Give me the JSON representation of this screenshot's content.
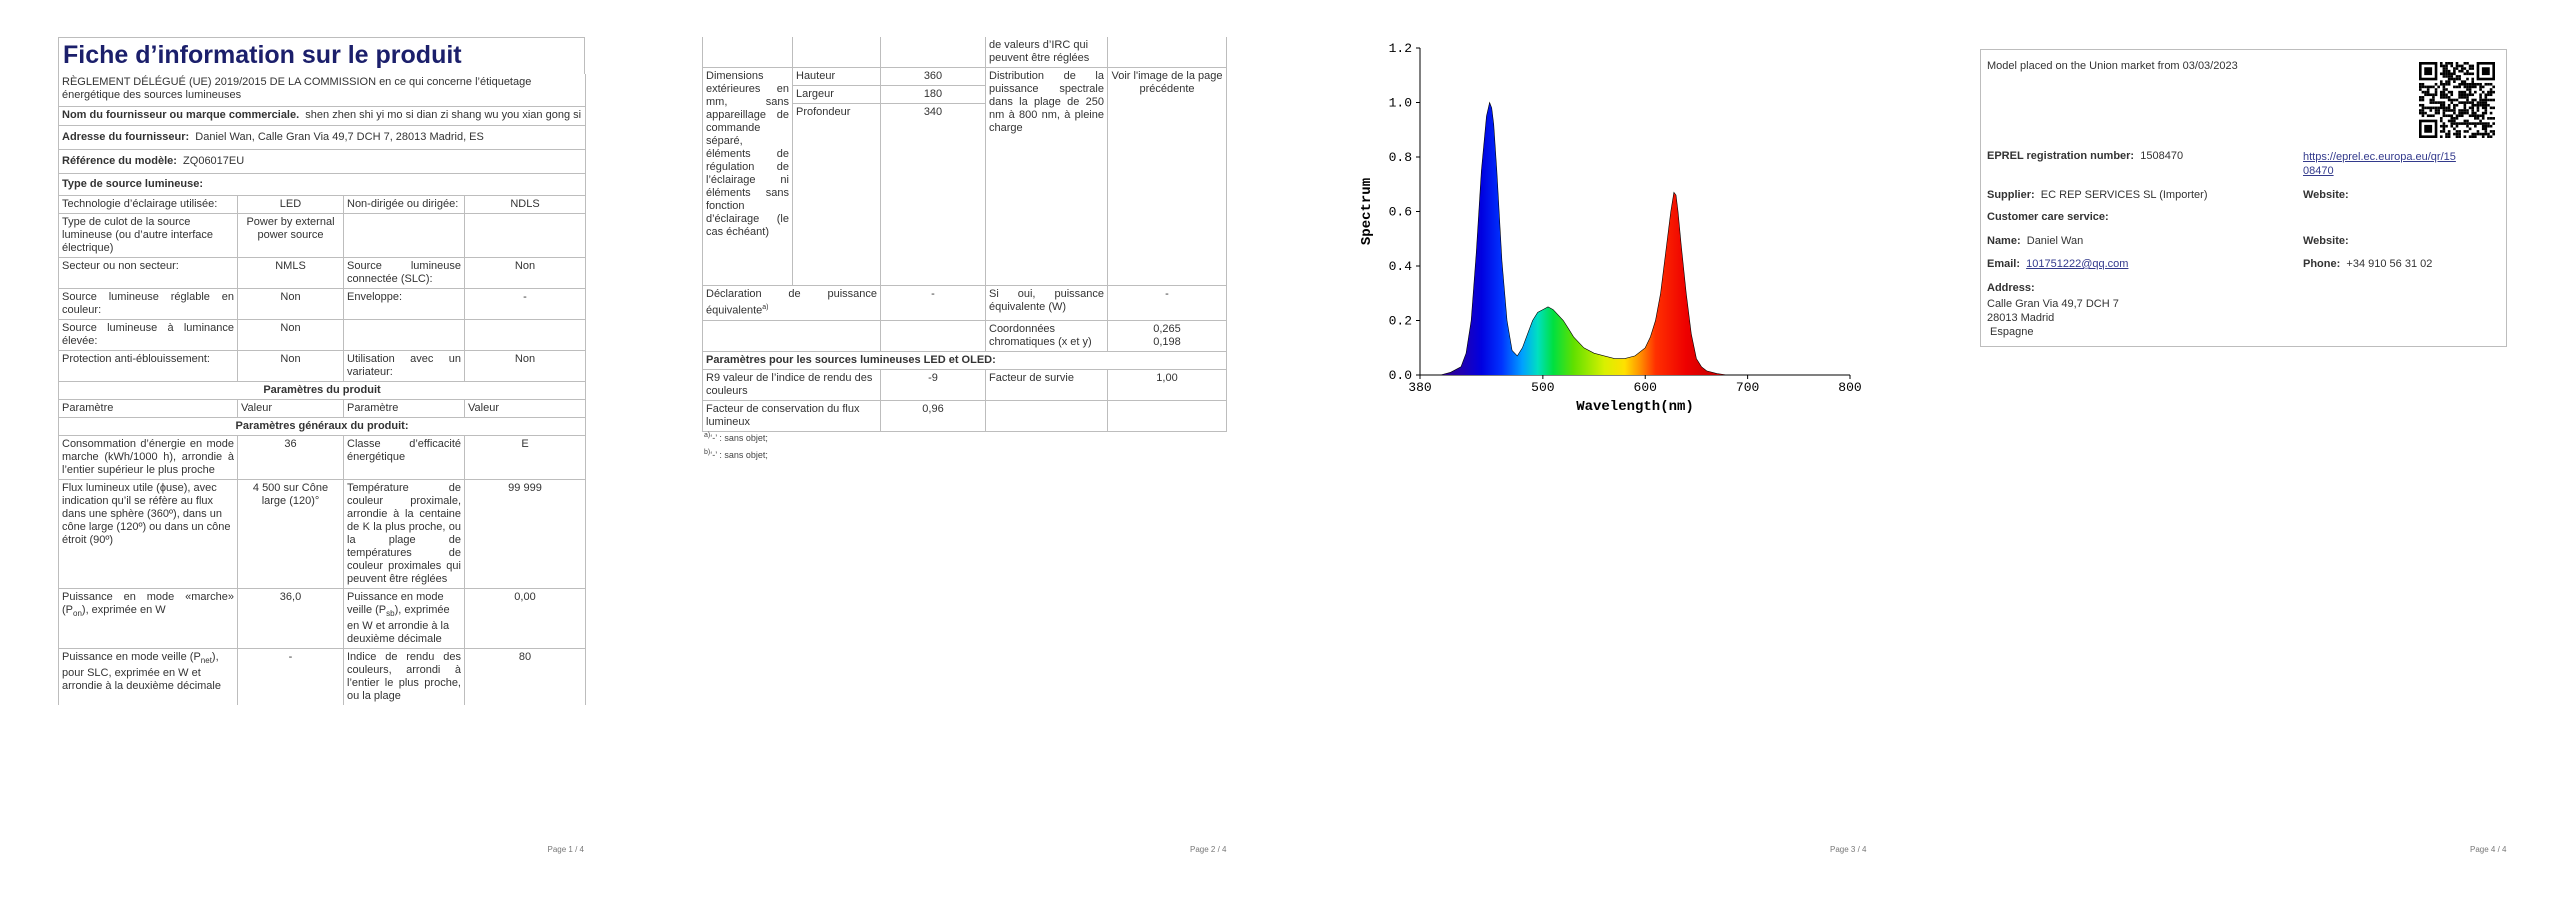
{
  "page1": {
    "title": "Fiche d’information sur le produit",
    "regulation": "RÈGLEMENT DÉLÉGUÉ (UE) 2019/2015 DE LA COMMISSION en ce qui concerne l’étiquetage énergétique des sources lumineuses",
    "supplier_label": "Nom du fournisseur ou marque commerciale.",
    "supplier_value": "shen zhen shi yi mo si dian zi shang wu you xian gong si",
    "address_label": "Adresse du fournisseur:",
    "address_value": "Daniel Wan, Calle Gran Via 49,7 DCH 7, 28013 Madrid, ES",
    "model_label": "Référence du modèle:",
    "model_value": "ZQ06017EU",
    "type_heading": "Type de source lumineuse:",
    "rows": [
      [
        "Technologie d’éclairage utilisée:",
        "LED",
        "Non-dirigée ou dirigée:",
        "NDLS"
      ],
      [
        "Type de culot de la source lumineuse (ou d’autre interface électrique)",
        "Power by external power source",
        "",
        ""
      ],
      [
        "Secteur ou non secteur:",
        "NMLS",
        "Source lumineuse connectée (SLC):",
        "Non"
      ],
      [
        "Source lumineuse réglable en couleur:",
        "Non",
        "Enveloppe:",
        "-"
      ],
      [
        "Source lumineuse à luminance élevée:",
        "Non",
        "",
        ""
      ],
      [
        "Protection anti-éblouissement:",
        "Non",
        "Utilisation avec un variateur:",
        "Non"
      ]
    ],
    "params_heading": "Paramètres du produit",
    "col_headers": [
      "Paramètre",
      "Valeur",
      "Paramètre",
      "Valeur"
    ],
    "general_heading": "Paramètres généraux du produit:",
    "params": [
      [
        "Consommation d’énergie en mode marche (kWh/1000 h), arrondie à l’entier supérieur le plus proche",
        "36",
        "Classe d’efficacité énergétique",
        "E"
      ],
      [
        "Flux lumineux utile (ϕuse), avec indication qu’il se réfère au flux dans une sphère (360º), dans un cône large (120º) ou dans un cône étroit (90º)",
        "4 500 sur Cône large (120)°",
        "Température de couleur proximale, arrondie à la centaine de K la plus proche, ou la plage de températures de couleur proximales qui peuvent être réglées",
        "99 999"
      ],
      [
        "Puissance en mode «marche» (Pon), exprimée en W",
        "36,0",
        "Puissance en mode veille (Psb), exprimée en W et arrondie à la deuxième décimale",
        "0,00"
      ],
      [
        "Puissance en mode veille (Pnet), pour SLC, exprimée en W et arrondie à la deuxième décimale",
        "-",
        "Indice de rendu des couleurs, arrondi à l’entier le plus proche, ou la plage",
        "80"
      ]
    ],
    "page_num": "Page 1 / 4"
  },
  "page2": {
    "cont_text": "de valeurs d’IRC qui peuvent être réglées",
    "dims_label": "Dimensions extérieures en mm, sans appareillage de commande séparé, éléments de régulation de l’éclairage ni éléments sans fonction d’éclairage (le cas échéant)",
    "dims": [
      [
        "Hauteur",
        "360"
      ],
      [
        "Largeur",
        "180"
      ],
      [
        "Profondeur",
        "340"
      ]
    ],
    "spectral_label": "Distribution de la puissance spectrale dans la plage de 250 nm à 800 nm, à pleine charge",
    "spectral_value": "Voir l'image de la page précédente",
    "equiv_label": "Déclaration de puissance équivalente",
    "equiv_sup": "a)",
    "equiv_value": "-",
    "equiv_if_label": "Si oui, puissance équivalente (W)",
    "equiv_if_value": "-",
    "chroma_label": "Coordonnées chromatiques (x et y)",
    "chroma_x": "0,265",
    "chroma_y": "0,198",
    "led_heading": "Paramètres pour les sources lumineuses LED et OLED:",
    "r9_label": "R9 valeur de l’indice de rendu des couleurs",
    "r9_value": "-9",
    "survival_label": "Facteur de survie",
    "survival_value": "1,00",
    "flux_label": "Facteur de conservation du flux lumineux",
    "flux_value": "0,96",
    "fn_a": "a)",
    "fn_a_text": "‘-’ : sans objet;",
    "fn_b": "b)",
    "fn_b_text": "‘-’ : sans objet;",
    "page_num": "Page 2 / 4"
  },
  "chart_data": {
    "type": "area",
    "title": "",
    "xlabel": "Wavelength(nm)",
    "ylabel": "Spectrum",
    "xlim": [
      380,
      800
    ],
    "ylim": [
      0,
      1.2
    ],
    "xticks": [
      "380",
      "500",
      "600",
      "700",
      "800"
    ],
    "yticks": [
      "0.0",
      "0.2",
      "0.4",
      "0.6",
      "0.8",
      "1.0",
      "1.2"
    ],
    "x": [
      400,
      410,
      420,
      425,
      430,
      435,
      440,
      445,
      448,
      450,
      452,
      455,
      460,
      465,
      470,
      475,
      480,
      485,
      490,
      495,
      500,
      505,
      510,
      515,
      520,
      525,
      530,
      540,
      550,
      560,
      570,
      580,
      590,
      600,
      605,
      610,
      615,
      620,
      625,
      628,
      630,
      632,
      635,
      640,
      645,
      650,
      655,
      660,
      670,
      680,
      700,
      750,
      800
    ],
    "y": [
      0.0,
      0.01,
      0.03,
      0.08,
      0.2,
      0.45,
      0.75,
      0.95,
      1.0,
      0.98,
      0.92,
      0.75,
      0.42,
      0.2,
      0.09,
      0.07,
      0.1,
      0.15,
      0.2,
      0.23,
      0.24,
      0.25,
      0.24,
      0.22,
      0.2,
      0.17,
      0.14,
      0.1,
      0.08,
      0.07,
      0.06,
      0.06,
      0.07,
      0.1,
      0.14,
      0.2,
      0.3,
      0.45,
      0.6,
      0.67,
      0.66,
      0.6,
      0.48,
      0.3,
      0.15,
      0.06,
      0.03,
      0.015,
      0.005,
      0.0,
      0.0,
      0.0,
      0.0
    ],
    "grid": false,
    "colormap": "visible-spectrum",
    "page_num": "Page 3 / 4"
  },
  "page4": {
    "placed": "Model placed on the Union market from 03/03/2023",
    "eprel_label": "EPREL registration number:",
    "eprel_value": "1508470",
    "eprel_link_1": "https://eprel.ec.europa.eu/qr/15",
    "eprel_link_2": "08470",
    "supplier_label": "Supplier:",
    "supplier_value": "EC REP SERVICES SL (Importer)",
    "website_label": "Website:",
    "care_label": "Customer care service:",
    "name_label": "Name:",
    "name_value": "Daniel Wan",
    "website2_label": "Website:",
    "email_label": "Email:",
    "email_value": "101751222@qq.com",
    "phone_label": "Phone:",
    "phone_value": "+34 910 56 31 02",
    "address_label": "Address:",
    "address_lines": [
      "Calle Gran Via 49,7 DCH 7",
      "28013 Madrid",
      " Espagne"
    ],
    "page_num": "Page 4 / 4"
  }
}
